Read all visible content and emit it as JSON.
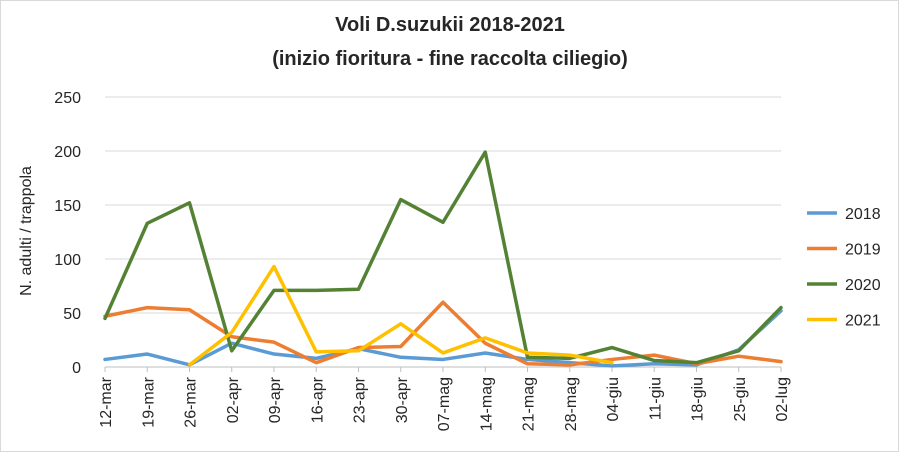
{
  "chart_data": {
    "type": "line",
    "title": "Voli D.suzukii 2018-2021",
    "subtitle": "(inizio fioritura - fine raccolta ciliegio)",
    "xlabel": "",
    "ylabel": "N. adulti / trappola",
    "ylim": [
      0,
      250
    ],
    "yticks": [
      "0",
      "50",
      "100",
      "150",
      "200",
      "250"
    ],
    "grid": true,
    "legend_position": "right",
    "categories": [
      "12-mar",
      "19-mar",
      "26-mar",
      "02-apr",
      "09-apr",
      "16-apr",
      "23-apr",
      "30-apr",
      "07-mag",
      "14-mag",
      "21-mag",
      "28-mag",
      "04-giu",
      "11-giu",
      "18-giu",
      "25-giu",
      "02-lug"
    ],
    "series": [
      {
        "name": "2018",
        "color": "#5B9BD5",
        "values": [
          7,
          12,
          2,
          22,
          12,
          8,
          17,
          9,
          7,
          13,
          7,
          4,
          1,
          3,
          2,
          16,
          52
        ]
      },
      {
        "name": "2019",
        "color": "#ED7D31",
        "values": [
          47,
          55,
          53,
          28,
          23,
          4,
          18,
          19,
          60,
          22,
          3,
          2,
          7,
          11,
          3,
          10,
          5
        ]
      },
      {
        "name": "2020",
        "color": "#548235",
        "values": [
          45,
          133,
          152,
          15,
          71,
          71,
          72,
          155,
          134,
          199,
          9,
          8,
          18,
          6,
          4,
          15,
          55
        ]
      },
      {
        "name": "2021",
        "color": "#FFC000",
        "values": [
          null,
          null,
          2,
          32,
          93,
          14,
          15,
          40,
          13,
          27,
          13,
          11,
          4,
          null,
          null,
          null,
          null
        ]
      }
    ]
  }
}
